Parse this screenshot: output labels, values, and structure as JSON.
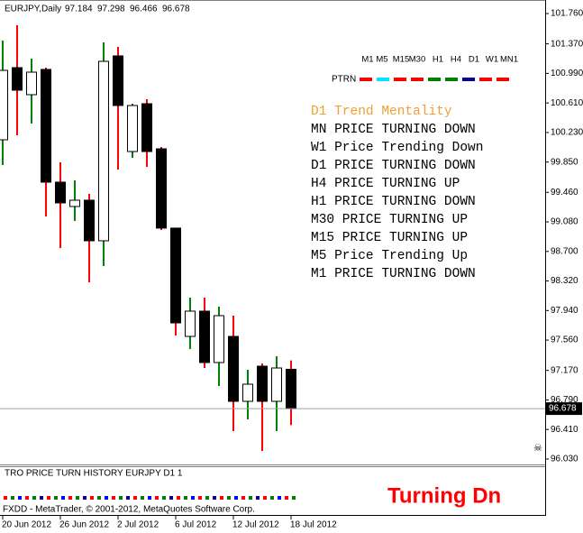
{
  "chart_data": {
    "type": "candlestick",
    "title": "EURJPY,Daily",
    "categories": [
      "20 Jun 2012",
      null,
      null,
      null,
      "26 Jun 2012",
      null,
      null,
      null,
      "2 Jul 2012",
      null,
      null,
      null,
      "6 Jul 2012",
      null,
      null,
      null,
      "12 Jul 2012",
      null,
      null,
      null,
      "18 Jul 2012"
    ],
    "open": [
      100.136,
      101.064,
      100.716,
      101.041,
      99.591,
      99.278,
      99.359,
      98.837,
      101.215,
      99.985,
      100.6,
      100.02,
      99.0,
      97.607,
      97.932,
      97.271,
      97.607,
      96.772,
      97.224,
      96.772,
      97.184
    ],
    "high": [
      101.412,
      101.609,
      101.18,
      101.064,
      99.846,
      99.614,
      99.44,
      101.389,
      101.331,
      100.6,
      100.658,
      100.043,
      99.0,
      98.106,
      98.106,
      97.99,
      97.874,
      97.178,
      97.259,
      97.352,
      97.298
    ],
    "low": [
      99.811,
      100.194,
      100.345,
      99.15,
      98.744,
      99.092,
      98.303,
      98.512,
      99.753,
      99.904,
      99.788,
      98.976,
      97.619,
      97.445,
      97.201,
      96.969,
      96.389,
      96.54,
      96.134,
      96.389,
      96.466
    ],
    "close": [
      101.029,
      100.774,
      101.006,
      99.591,
      99.324,
      99.359,
      98.837,
      101.145,
      100.577,
      100.577,
      99.985,
      99.0,
      97.781,
      97.932,
      97.271,
      97.874,
      96.772,
      96.992,
      96.772,
      97.201,
      96.678
    ],
    "up_body": "#ffffff",
    "down_body": "#000000",
    "up_wick": "#008000",
    "down_wick": "#ff0000",
    "ylim": [
      95.96,
      101.876
    ],
    "yticks": [
      {
        "value": 101.76,
        "label": "101.760"
      },
      {
        "value": 101.37,
        "label": "101.370"
      },
      {
        "value": 100.99,
        "label": "100.990"
      },
      {
        "value": 100.61,
        "label": "100.610"
      },
      {
        "value": 100.23,
        "label": "100.230"
      },
      {
        "value": 99.85,
        "label": "99.850"
      },
      {
        "value": 99.46,
        "label": "99.460"
      },
      {
        "value": 99.08,
        "label": "99.080"
      },
      {
        "value": 98.7,
        "label": "98.700"
      },
      {
        "value": 98.32,
        "label": "98.320"
      },
      {
        "value": 97.94,
        "label": "97.940"
      },
      {
        "value": 97.56,
        "label": "97.560"
      },
      {
        "value": 97.17,
        "label": "97.170"
      },
      {
        "value": 96.79,
        "label": "96.790"
      },
      {
        "value": 96.41,
        "label": "96.410"
      },
      {
        "value": 96.03,
        "label": "96.030"
      }
    ]
  },
  "panel": {
    "ptrn": "PTRN",
    "timeframes": [
      {
        "label": "M1",
        "color": "#ff0000"
      },
      {
        "label": "M5",
        "color": "#00e5ff"
      },
      {
        "label": "M15",
        "color": "#ff0000"
      },
      {
        "label": "M30",
        "color": "#ff0000"
      },
      {
        "label": "H1",
        "color": "#008000"
      },
      {
        "label": "H4",
        "color": "#008000"
      },
      {
        "label": "D1",
        "color": "#000080"
      },
      {
        "label": "W1",
        "color": "#ff0000"
      },
      {
        "label": "MN1",
        "color": "#ff0000"
      }
    ],
    "lines": [
      {
        "text": "D1 Trend Mentality",
        "color": "#f0a030"
      },
      {
        "text": "MN PRICE TURNING DOWN",
        "color": "#000000"
      },
      {
        "text": "W1 Price Trending Down",
        "color": "#000000"
      },
      {
        "text": "D1 PRICE TURNING DOWN",
        "color": "#000000"
      },
      {
        "text": "H4 PRICE TURNING UP",
        "color": "#000000"
      },
      {
        "text": "H1 PRICE TURNING DOWN",
        "color": "#000000"
      },
      {
        "text": "M30 PRICE TURNING UP",
        "color": "#000000"
      },
      {
        "text": "M15 PRICE TURNING UP",
        "color": "#000000"
      },
      {
        "text": "M5 Price Trending Up",
        "color": "#000000"
      },
      {
        "text": "M1 PRICE TURNING DOWN",
        "color": "#000000"
      }
    ]
  },
  "indicator": {
    "title": "TRO PRICE TURN HISTORY EURJPY D1 1",
    "signal": "Turning Dn"
  },
  "footer": "FXDD - MetaTrader, © 2001-2012, MetaQuotes Software Corp."
}
